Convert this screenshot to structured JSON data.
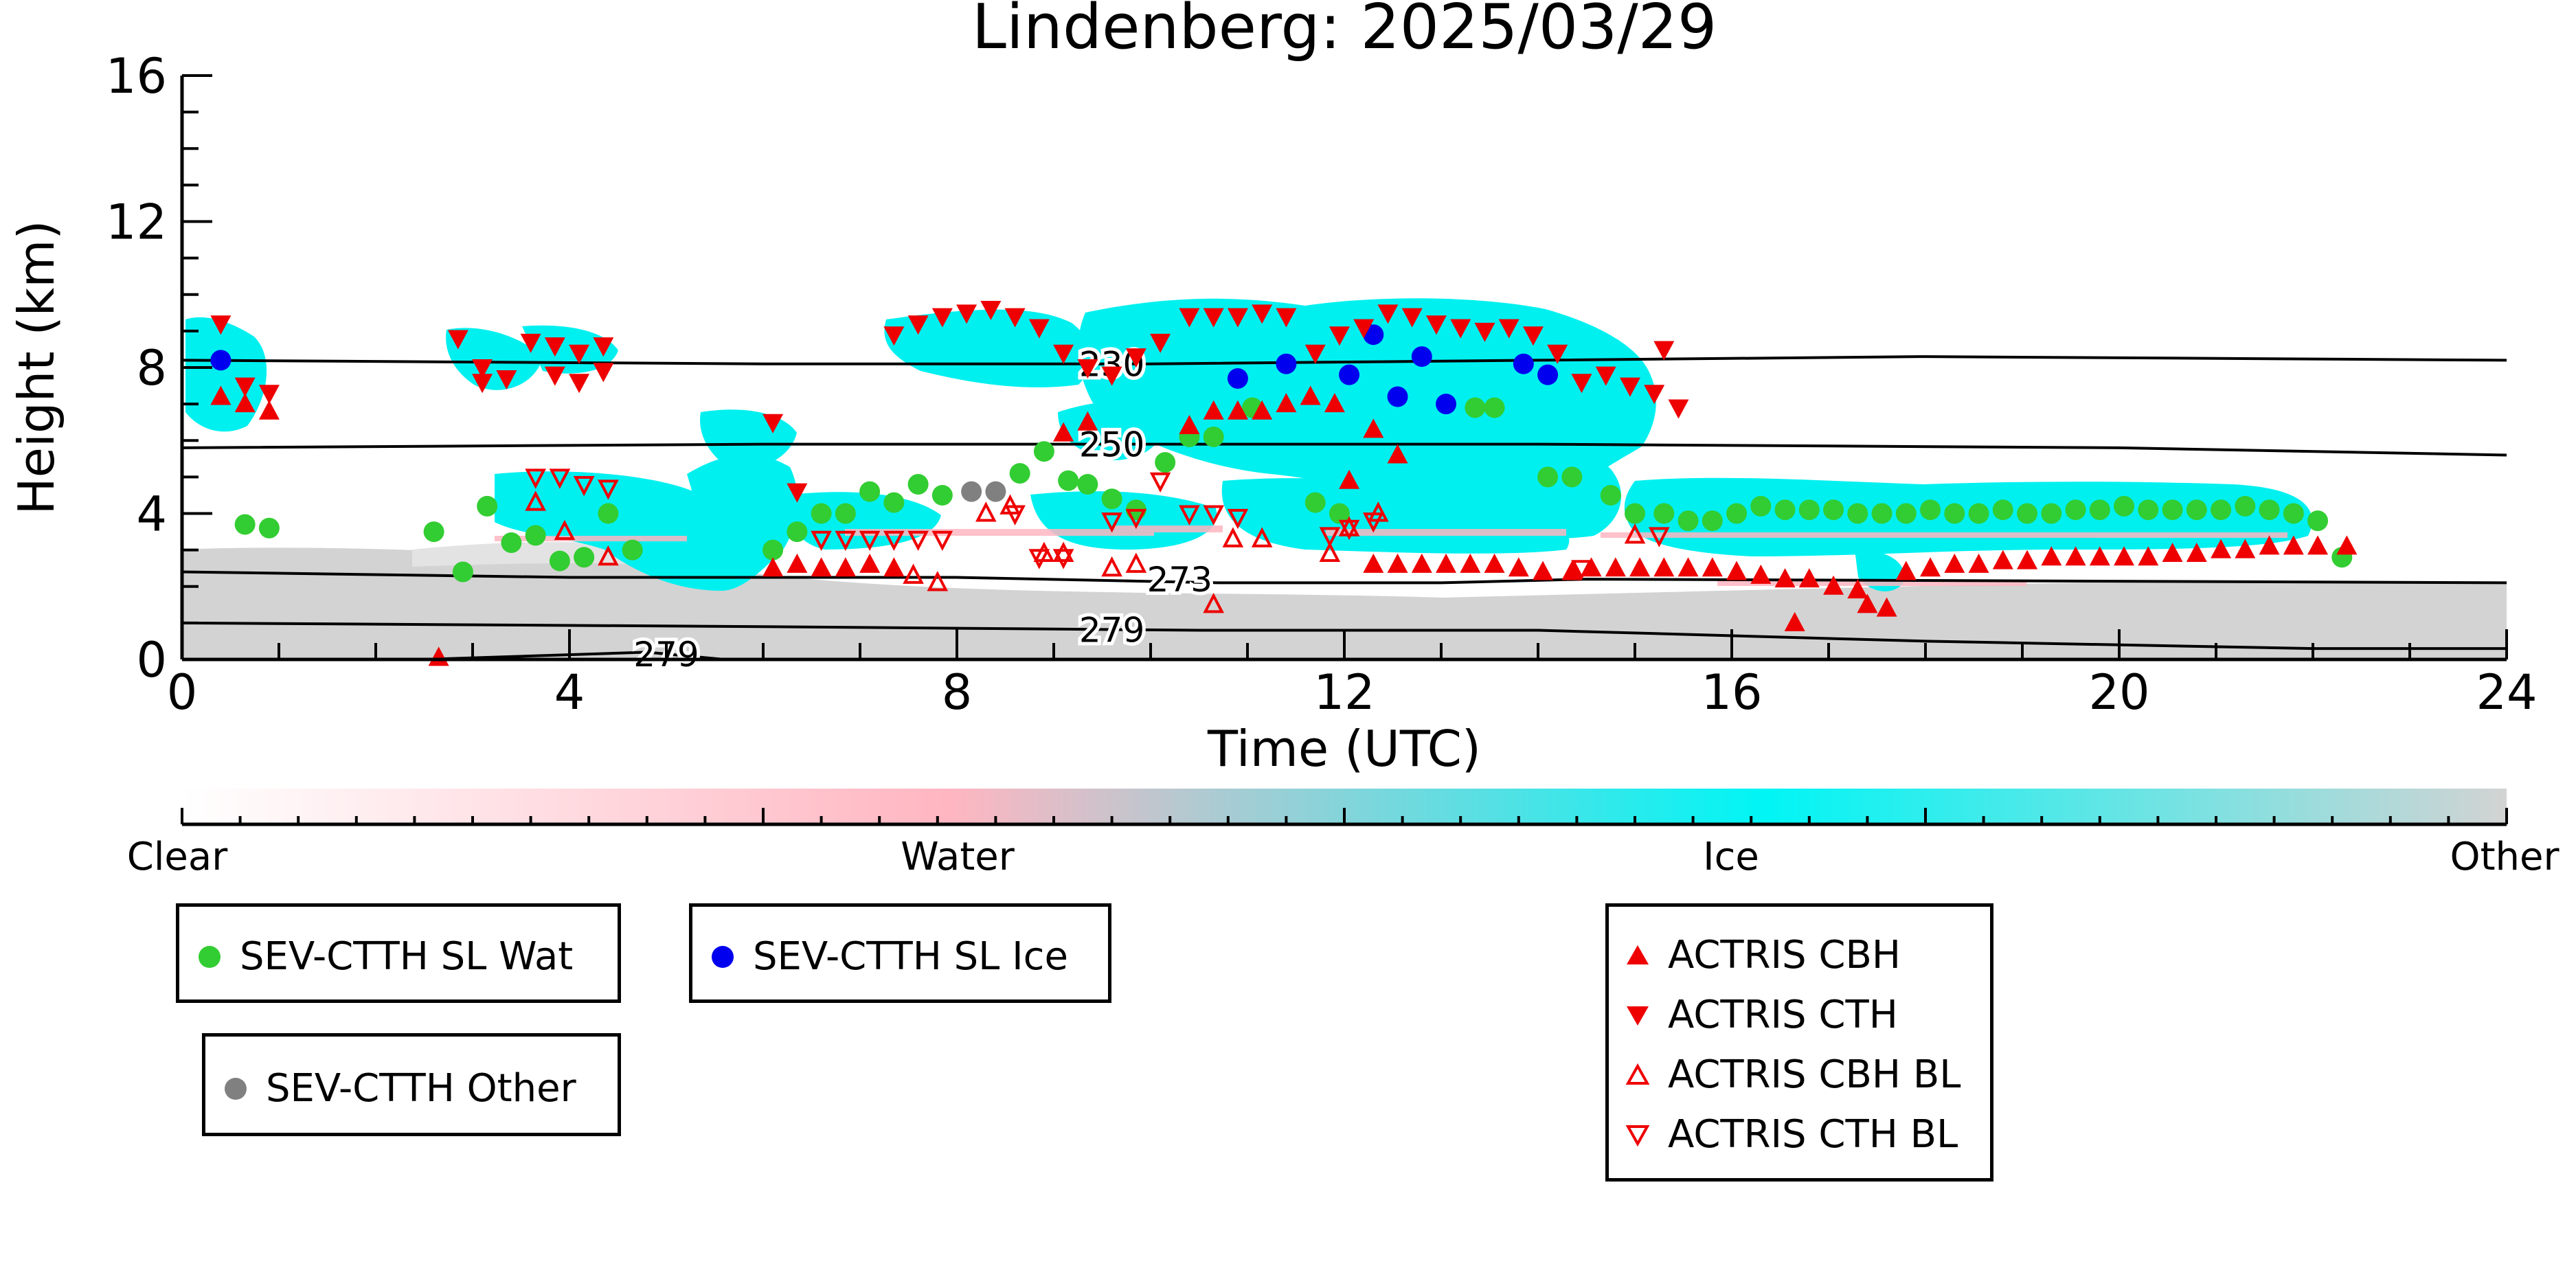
{
  "chart_data": {
    "type": "scatter",
    "title": "Lindenberg: 2025/03/29",
    "xlabel": "Time (UTC)",
    "ylabel": "Height (km)",
    "xlim": [
      0,
      24
    ],
    "ylim": [
      0,
      16
    ],
    "xticks": [
      0,
      4,
      8,
      12,
      16,
      20,
      24
    ],
    "yticks": [
      0,
      4,
      8,
      12,
      16
    ],
    "colorbar": {
      "labels": [
        "Clear",
        "Water",
        "Ice",
        "Other"
      ],
      "colors": [
        "#ffffff",
        "#ffb6c1",
        "#00f5f5",
        "#d3d3d3"
      ]
    },
    "contours": [
      {
        "label": "230",
        "points": [
          [
            0,
            8.2
          ],
          [
            6,
            8.1
          ],
          [
            10,
            8.1
          ],
          [
            14,
            8.2
          ],
          [
            18,
            8.3
          ],
          [
            24,
            8.2
          ]
        ]
      },
      {
        "label": "250",
        "points": [
          [
            0,
            5.8
          ],
          [
            6,
            5.9
          ],
          [
            10,
            5.9
          ],
          [
            14,
            5.9
          ],
          [
            20,
            5.8
          ],
          [
            24,
            5.6
          ]
        ]
      },
      {
        "label": "273",
        "points": [
          [
            0,
            2.4
          ],
          [
            4,
            2.25
          ],
          [
            8,
            2.25
          ],
          [
            10.7,
            2.1
          ],
          [
            13,
            2.1
          ],
          [
            14.5,
            2.2
          ],
          [
            24,
            2.1
          ]
        ]
      },
      {
        "label": "279",
        "points": [
          [
            0,
            1.0
          ],
          [
            6,
            0.9
          ],
          [
            10.5,
            0.8
          ],
          [
            14,
            0.8
          ],
          [
            18,
            0.5
          ],
          [
            22,
            0.3
          ],
          [
            24,
            0.3
          ]
        ]
      },
      {
        "label": "279",
        "points": [
          [
            2.5,
            0.0
          ],
          [
            4.8,
            0.2
          ],
          [
            5.6,
            0.0
          ]
        ]
      }
    ],
    "series": [
      {
        "name": "SEV-CTTH SL Wat",
        "color": "#32cd32",
        "marker": "circle",
        "points": [
          [
            0.65,
            3.7
          ],
          [
            0.9,
            3.6
          ],
          [
            2.6,
            3.5
          ],
          [
            2.9,
            2.4
          ],
          [
            3.15,
            4.2
          ],
          [
            3.4,
            3.2
          ],
          [
            3.65,
            3.4
          ],
          [
            3.9,
            2.7
          ],
          [
            4.15,
            2.8
          ],
          [
            4.4,
            4.0
          ],
          [
            4.65,
            3.0
          ],
          [
            6.1,
            3.0
          ],
          [
            6.35,
            3.5
          ],
          [
            6.6,
            4.0
          ],
          [
            6.85,
            4.0
          ],
          [
            7.1,
            4.6
          ],
          [
            7.35,
            4.3
          ],
          [
            7.6,
            4.8
          ],
          [
            7.85,
            4.5
          ],
          [
            8.65,
            5.1
          ],
          [
            8.9,
            5.7
          ],
          [
            9.15,
            4.9
          ],
          [
            9.35,
            4.8
          ],
          [
            9.6,
            4.4
          ],
          [
            9.85,
            4.1
          ],
          [
            10.15,
            5.4
          ],
          [
            10.4,
            6.1
          ],
          [
            10.65,
            6.1
          ],
          [
            11.05,
            6.9
          ],
          [
            11.7,
            4.3
          ],
          [
            11.95,
            4.0
          ],
          [
            13.35,
            6.9
          ],
          [
            13.55,
            6.9
          ],
          [
            14.1,
            5.0
          ],
          [
            14.35,
            5.0
          ],
          [
            14.75,
            4.5
          ],
          [
            15.0,
            4.0
          ],
          [
            15.3,
            4.0
          ],
          [
            15.55,
            3.8
          ],
          [
            15.8,
            3.8
          ],
          [
            16.05,
            4.0
          ],
          [
            16.3,
            4.2
          ],
          [
            16.55,
            4.1
          ],
          [
            16.8,
            4.1
          ],
          [
            17.05,
            4.1
          ],
          [
            17.3,
            4.0
          ],
          [
            17.55,
            4.0
          ],
          [
            17.8,
            4.0
          ],
          [
            18.05,
            4.1
          ],
          [
            18.3,
            4.0
          ],
          [
            18.55,
            4.0
          ],
          [
            18.8,
            4.1
          ],
          [
            19.05,
            4.0
          ],
          [
            19.3,
            4.0
          ],
          [
            19.55,
            4.1
          ],
          [
            19.8,
            4.1
          ],
          [
            20.05,
            4.2
          ],
          [
            20.3,
            4.1
          ],
          [
            20.55,
            4.1
          ],
          [
            20.8,
            4.1
          ],
          [
            21.05,
            4.1
          ],
          [
            21.3,
            4.2
          ],
          [
            21.55,
            4.1
          ],
          [
            21.8,
            4.0
          ],
          [
            22.05,
            3.8
          ],
          [
            22.3,
            2.8
          ]
        ]
      },
      {
        "name": "SEV-CTTH SL Ice",
        "color": "#0000ee",
        "marker": "circle",
        "points": [
          [
            0.4,
            8.2
          ],
          [
            10.9,
            7.7
          ],
          [
            11.4,
            8.1
          ],
          [
            12.05,
            7.8
          ],
          [
            12.3,
            8.9
          ],
          [
            12.55,
            7.2
          ],
          [
            12.8,
            8.3
          ],
          [
            13.05,
            7.0
          ],
          [
            13.85,
            8.1
          ],
          [
            14.1,
            7.8
          ]
        ]
      },
      {
        "name": "SEV-CTTH Other",
        "color": "#808080",
        "marker": "circle",
        "points": [
          [
            8.15,
            4.6
          ],
          [
            8.4,
            4.6
          ]
        ]
      },
      {
        "name": "ACTRIS CBH",
        "color": "#ee0000",
        "marker": "triangle-up",
        "points": [
          [
            0.4,
            7.2
          ],
          [
            0.65,
            7.0
          ],
          [
            0.9,
            6.8
          ],
          [
            2.65,
            0.05
          ],
          [
            6.1,
            2.5
          ],
          [
            6.35,
            2.6
          ],
          [
            6.6,
            2.5
          ],
          [
            6.85,
            2.5
          ],
          [
            7.1,
            2.6
          ],
          [
            7.35,
            2.5
          ],
          [
            9.1,
            6.2
          ],
          [
            9.35,
            6.5
          ],
          [
            10.4,
            6.4
          ],
          [
            10.65,
            6.8
          ],
          [
            10.9,
            6.8
          ],
          [
            11.15,
            6.8
          ],
          [
            11.4,
            7.0
          ],
          [
            11.65,
            7.2
          ],
          [
            11.9,
            7.0
          ],
          [
            12.05,
            4.9
          ],
          [
            12.3,
            6.3
          ],
          [
            12.55,
            5.6
          ],
          [
            12.3,
            2.6
          ],
          [
            12.55,
            2.6
          ],
          [
            12.8,
            2.6
          ],
          [
            13.05,
            2.6
          ],
          [
            13.3,
            2.6
          ],
          [
            13.55,
            2.6
          ],
          [
            13.8,
            2.5
          ],
          [
            14.05,
            2.4
          ],
          [
            14.35,
            2.4
          ],
          [
            14.55,
            2.5
          ],
          [
            14.8,
            2.5
          ],
          [
            15.05,
            2.5
          ],
          [
            15.3,
            2.5
          ],
          [
            15.55,
            2.5
          ],
          [
            15.8,
            2.5
          ],
          [
            16.05,
            2.4
          ],
          [
            16.3,
            2.3
          ],
          [
            16.55,
            2.2
          ],
          [
            16.65,
            1.0
          ],
          [
            16.8,
            2.2
          ],
          [
            17.05,
            2.0
          ],
          [
            17.3,
            1.9
          ],
          [
            17.4,
            1.5
          ],
          [
            17.6,
            1.4
          ],
          [
            17.8,
            2.4
          ],
          [
            18.05,
            2.5
          ],
          [
            18.3,
            2.6
          ],
          [
            18.55,
            2.6
          ],
          [
            18.8,
            2.7
          ],
          [
            19.05,
            2.7
          ],
          [
            19.3,
            2.8
          ],
          [
            19.55,
            2.8
          ],
          [
            19.8,
            2.8
          ],
          [
            20.05,
            2.8
          ],
          [
            20.3,
            2.8
          ],
          [
            20.55,
            2.9
          ],
          [
            20.8,
            2.9
          ],
          [
            21.05,
            3.0
          ],
          [
            21.3,
            3.0
          ],
          [
            21.55,
            3.1
          ],
          [
            21.8,
            3.1
          ],
          [
            22.05,
            3.1
          ],
          [
            22.35,
            3.1
          ]
        ]
      },
      {
        "name": "ACTRIS CTH",
        "color": "#ee0000",
        "marker": "triangle-down",
        "points": [
          [
            0.4,
            9.2
          ],
          [
            0.65,
            7.5
          ],
          [
            0.9,
            7.3
          ],
          [
            2.85,
            8.8
          ],
          [
            3.1,
            8.0
          ],
          [
            3.35,
            7.7
          ],
          [
            3.6,
            8.7
          ],
          [
            3.85,
            8.6
          ],
          [
            4.1,
            8.4
          ],
          [
            4.35,
            8.6
          ],
          [
            6.1,
            6.5
          ],
          [
            6.35,
            4.6
          ],
          [
            7.35,
            8.9
          ],
          [
            7.6,
            9.2
          ],
          [
            7.85,
            9.4
          ],
          [
            8.1,
            9.5
          ],
          [
            8.35,
            9.6
          ],
          [
            8.6,
            9.4
          ],
          [
            8.85,
            9.1
          ],
          [
            9.1,
            8.4
          ],
          [
            9.35,
            8.0
          ],
          [
            9.6,
            7.8
          ],
          [
            9.85,
            8.3
          ],
          [
            10.1,
            8.7
          ],
          [
            10.4,
            9.4
          ],
          [
            10.65,
            9.4
          ],
          [
            10.9,
            9.4
          ],
          [
            11.15,
            9.5
          ],
          [
            11.4,
            9.4
          ],
          [
            11.7,
            8.4
          ],
          [
            11.95,
            8.9
          ],
          [
            12.2,
            9.1
          ],
          [
            12.45,
            9.5
          ],
          [
            12.7,
            9.4
          ],
          [
            12.95,
            9.2
          ],
          [
            13.2,
            9.1
          ],
          [
            13.45,
            9.0
          ],
          [
            13.7,
            9.1
          ],
          [
            13.95,
            8.9
          ],
          [
            14.2,
            8.4
          ],
          [
            14.45,
            7.6
          ],
          [
            14.7,
            7.8
          ],
          [
            14.95,
            7.5
          ],
          [
            15.2,
            7.3
          ],
          [
            15.45,
            6.9
          ],
          [
            15.3,
            8.5
          ],
          [
            3.1,
            7.6
          ],
          [
            3.85,
            7.8
          ],
          [
            4.1,
            7.6
          ],
          [
            4.35,
            7.9
          ]
        ]
      },
      {
        "name": "ACTRIS CBH BL",
        "color": "#ee0000",
        "marker": "triangle-up-open",
        "points": [
          [
            3.65,
            4.3
          ],
          [
            3.95,
            3.5
          ],
          [
            4.4,
            2.8
          ],
          [
            7.55,
            2.3
          ],
          [
            7.8,
            2.1
          ],
          [
            8.3,
            4.0
          ],
          [
            8.55,
            4.2
          ],
          [
            8.9,
            2.9
          ],
          [
            9.1,
            2.9
          ],
          [
            9.6,
            2.5
          ],
          [
            9.85,
            2.6
          ],
          [
            10.65,
            1.5
          ],
          [
            10.85,
            3.3
          ],
          [
            11.15,
            3.3
          ],
          [
            11.85,
            2.9
          ],
          [
            12.05,
            3.6
          ],
          [
            12.35,
            4.0
          ],
          [
            15.0,
            3.4
          ]
        ]
      },
      {
        "name": "ACTRIS CTH BL",
        "color": "#ee0000",
        "marker": "triangle-down-open",
        "points": [
          [
            3.65,
            5.0
          ],
          [
            3.9,
            5.0
          ],
          [
            4.15,
            4.8
          ],
          [
            4.4,
            4.7
          ],
          [
            6.6,
            3.3
          ],
          [
            6.85,
            3.3
          ],
          [
            7.1,
            3.3
          ],
          [
            7.35,
            3.3
          ],
          [
            7.6,
            3.3
          ],
          [
            7.85,
            3.3
          ],
          [
            8.6,
            4.0
          ],
          [
            8.85,
            2.8
          ],
          [
            9.1,
            2.8
          ],
          [
            9.6,
            3.8
          ],
          [
            9.85,
            3.9
          ],
          [
            10.1,
            4.9
          ],
          [
            10.4,
            4.0
          ],
          [
            10.65,
            4.0
          ],
          [
            10.9,
            3.9
          ],
          [
            11.85,
            3.4
          ],
          [
            12.05,
            3.6
          ],
          [
            12.3,
            3.8
          ],
          [
            14.45,
            2.5
          ],
          [
            15.25,
            3.4
          ]
        ]
      }
    ]
  },
  "legends": {
    "sev_wat": "SEV-CTTH SL Wat",
    "sev_ice": "SEV-CTTH SL Ice",
    "sev_other": "SEV-CTTH Other",
    "actris_cbh": "ACTRIS CBH",
    "actris_cth": "ACTRIS CTH",
    "actris_cbh_bl": "ACTRIS CBH BL",
    "actris_cth_bl": "ACTRIS CTH BL"
  }
}
